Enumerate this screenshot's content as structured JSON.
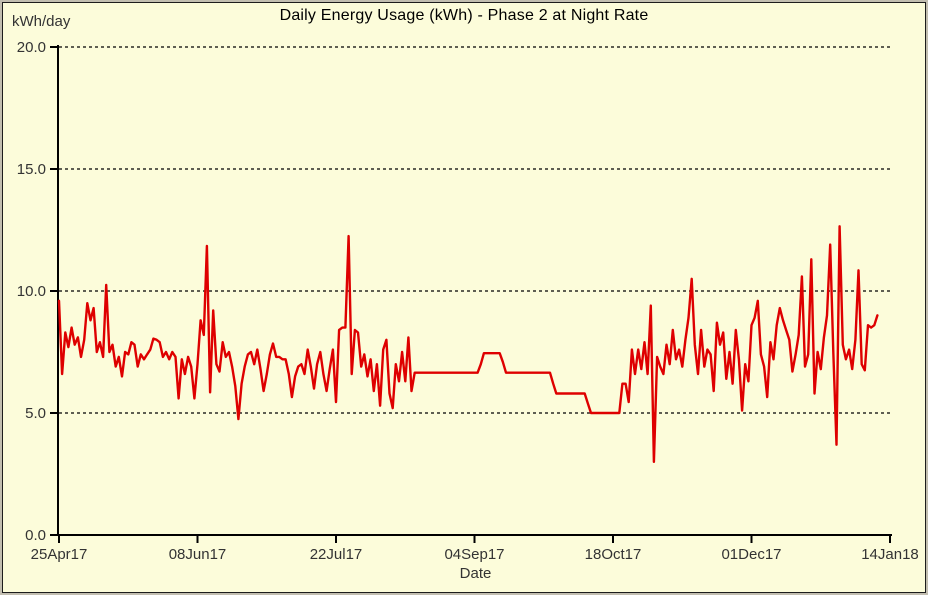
{
  "window": {
    "background_color": "#FCFCDA",
    "outer_border_color": "#c2beb0",
    "inner_border_color": "#1c1c1c"
  },
  "chart_data": {
    "type": "line",
    "title": "Daily Energy Usage (kWh) - Phase 2 at Night Rate",
    "ylabel": "kWh/day",
    "xlabel": "Date",
    "legend": "none",
    "grid": "horizontal dashed lines at each y tick",
    "colors": {
      "line": "#de0000",
      "axis": "#000000",
      "grid": "#000000",
      "tick_text": "#333333",
      "title_text": "#000000"
    },
    "y_axis": {
      "range": [
        0,
        20
      ],
      "tick_values": [
        0,
        5,
        10,
        15,
        20
      ],
      "tick_labels": [
        "0.0",
        "5.0",
        "10.0",
        "15.0",
        "20.0"
      ]
    },
    "x_axis": {
      "unit": "day",
      "range_days": [
        0,
        264
      ],
      "tick_days": [
        0,
        44,
        88,
        132,
        176,
        220,
        264
      ],
      "tick_labels": [
        "25Apr17",
        "08Jun17",
        "22Jul17",
        "04Sep17",
        "18Oct17",
        "01Dec17",
        "14Jan18"
      ]
    },
    "series": [
      {
        "name": "daily-energy-usage-night-rate",
        "x_start_day": 0,
        "x_step": 1,
        "values": [
          9.6,
          6.6,
          8.3,
          7.7,
          8.5,
          7.8,
          8.1,
          7.3,
          8.0,
          9.5,
          8.8,
          9.3,
          7.5,
          7.9,
          7.3,
          10.25,
          7.5,
          7.8,
          6.9,
          7.3,
          6.5,
          7.5,
          7.4,
          7.9,
          7.8,
          6.9,
          7.4,
          7.2,
          7.4,
          7.6,
          8.05,
          8.0,
          7.9,
          7.3,
          7.5,
          7.2,
          7.5,
          7.3,
          5.6,
          7.2,
          6.6,
          7.3,
          6.9,
          5.6,
          7.0,
          8.8,
          8.2,
          11.85,
          5.85,
          9.2,
          7.0,
          6.7,
          7.9,
          7.3,
          7.5,
          6.9,
          6.1,
          4.75,
          6.2,
          6.9,
          7.4,
          7.5,
          7.0,
          7.6,
          6.8,
          5.9,
          6.6,
          7.4,
          7.85,
          7.3,
          7.3,
          7.2,
          7.2,
          6.6,
          5.65,
          6.5,
          6.9,
          7.0,
          6.6,
          7.6,
          6.9,
          6.0,
          7.0,
          7.5,
          6.6,
          5.9,
          6.8,
          7.6,
          5.45,
          8.4,
          8.5,
          8.5,
          12.25,
          6.6,
          8.4,
          8.3,
          6.9,
          7.4,
          6.5,
          7.2,
          5.9,
          7.0,
          5.3,
          7.6,
          8.0,
          5.8,
          5.2,
          7.0,
          6.3,
          7.5,
          6.3,
          8.1,
          5.9,
          6.65,
          6.65,
          6.65,
          6.65,
          6.65,
          6.65,
          6.65,
          6.65,
          6.65,
          6.65,
          6.65,
          6.65,
          6.65,
          6.65,
          6.65,
          6.65,
          6.65,
          6.65,
          6.65,
          6.65,
          6.65,
          7.0,
          7.45,
          7.45,
          7.45,
          7.45,
          7.45,
          7.45,
          7.1,
          6.65,
          6.65,
          6.65,
          6.65,
          6.65,
          6.65,
          6.65,
          6.65,
          6.65,
          6.65,
          6.65,
          6.65,
          6.65,
          6.65,
          6.65,
          6.2,
          5.8,
          5.8,
          5.8,
          5.8,
          5.8,
          5.8,
          5.8,
          5.8,
          5.8,
          5.8,
          5.4,
          5.0,
          5.0,
          5.0,
          5.0,
          5.0,
          5.0,
          5.0,
          5.0,
          5.0,
          5.0,
          6.2,
          6.2,
          5.45,
          7.6,
          6.6,
          7.6,
          6.8,
          7.9,
          6.6,
          9.4,
          3.0,
          7.3,
          6.9,
          6.6,
          7.8,
          7.0,
          8.4,
          7.2,
          7.6,
          6.9,
          8.0,
          8.9,
          10.5,
          7.8,
          6.6,
          8.4,
          6.9,
          7.6,
          7.4,
          5.9,
          8.7,
          7.8,
          8.3,
          6.4,
          7.5,
          6.2,
          8.4,
          7.2,
          5.1,
          7.0,
          6.3,
          8.6,
          8.9,
          9.6,
          7.4,
          6.9,
          5.65,
          7.9,
          7.2,
          8.6,
          9.3,
          8.8,
          8.4,
          8.0,
          6.7,
          7.4,
          8.2,
          10.6,
          6.9,
          7.4,
          11.3,
          5.8,
          7.5,
          6.8,
          8.1,
          9.0,
          11.9,
          7.5,
          3.7,
          12.65,
          7.8,
          7.2,
          7.6,
          6.8,
          8.0,
          10.85,
          7.0,
          6.75,
          8.6,
          8.5,
          8.6,
          9.0
        ]
      }
    ]
  }
}
